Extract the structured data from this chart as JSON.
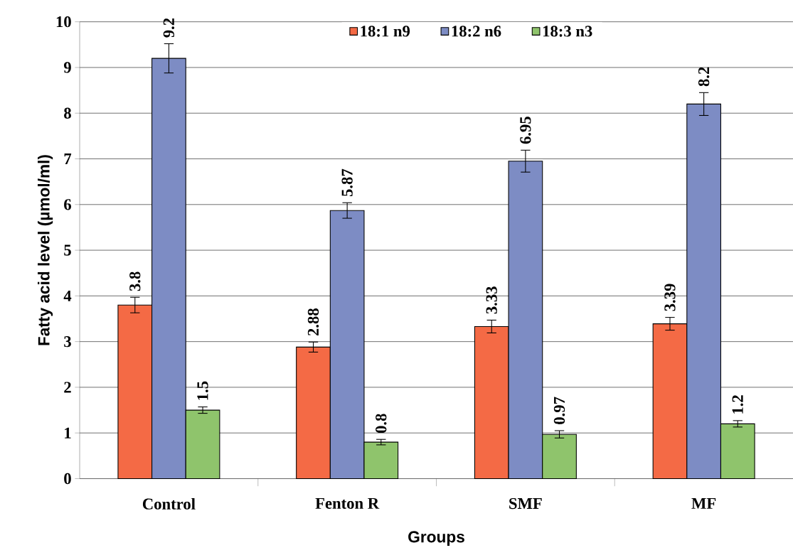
{
  "chart_data": {
    "type": "bar",
    "xlabel": "Groups",
    "ylabel": "Fatty acid level (µmol/ml)",
    "categories": [
      "Control",
      "Fenton R",
      "SMF",
      "MF"
    ],
    "series": [
      {
        "name": "18:1 n9",
        "color": "#f46a45",
        "values": [
          3.8,
          2.88,
          3.33,
          3.39
        ],
        "errors": [
          0.17,
          0.11,
          0.14,
          0.14
        ]
      },
      {
        "name": "18:2 n6",
        "color": "#7d8cc4",
        "values": [
          9.2,
          5.87,
          6.95,
          8.2
        ],
        "errors": [
          0.32,
          0.17,
          0.24,
          0.25
        ]
      },
      {
        "name": "18:3 n3",
        "color": "#8fc46c",
        "values": [
          1.5,
          0.8,
          0.97,
          1.2
        ],
        "errors": [
          0.07,
          0.06,
          0.08,
          0.07
        ]
      }
    ],
    "ylim": [
      0,
      10
    ],
    "yticks": [
      0,
      1,
      2,
      3,
      4,
      5,
      6,
      7,
      8,
      9,
      10
    ],
    "grid": "y",
    "legend": "top",
    "data_labels": true
  }
}
